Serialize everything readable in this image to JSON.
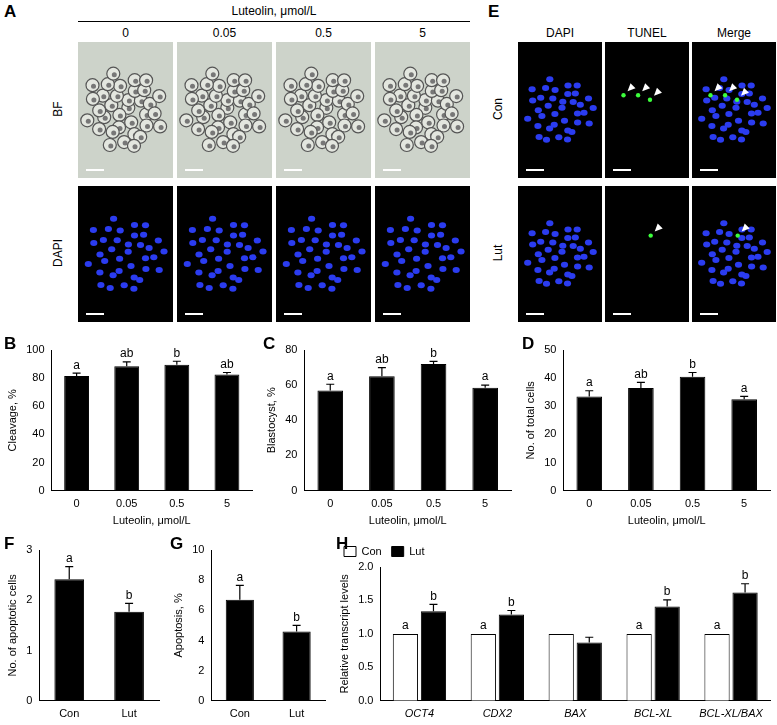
{
  "chart_data": [
    {
      "type": "bar",
      "panel": "B",
      "y_label": "Cleavage, %",
      "x_label": "Luteolin, μmol/L",
      "categories": [
        "0",
        "0.05",
        "0.5",
        "5"
      ],
      "values": [
        81.5,
        88.5,
        89.5,
        82.5
      ],
      "errors": [
        2,
        3,
        2.5,
        1.5
      ],
      "letters": [
        "a",
        "ab",
        "b",
        "ab"
      ],
      "color": "#000000",
      "ylim": [
        0,
        100
      ],
      "yticks": [
        0,
        20,
        40,
        60,
        80,
        100
      ],
      "grid": false
    },
    {
      "type": "bar",
      "panel": "C",
      "y_label": "Blastocyst, %",
      "x_label": "Luteolin, μmol/L",
      "categories": [
        "0",
        "0.05",
        "0.5",
        "5"
      ],
      "values": [
        57,
        65,
        72,
        58.5
      ],
      "errors": [
        3.5,
        5,
        1.5,
        1.5
      ],
      "letters": [
        "a",
        "ab",
        "b",
        "a"
      ],
      "color": "#000000",
      "ylim": [
        0,
        80
      ],
      "yticks": [
        0,
        20,
        40,
        60,
        80
      ],
      "grid": false
    },
    {
      "type": "bar",
      "panel": "D",
      "y_label": "No. of total cells",
      "x_label": "Luteolin, μmol/L",
      "categories": [
        "0",
        "0.05",
        "0.5",
        "5"
      ],
      "values": [
        33.5,
        36.5,
        40.5,
        32.5
      ],
      "errors": [
        2,
        2,
        1.5,
        1
      ],
      "letters": [
        "a",
        "ab",
        "b",
        "a"
      ],
      "color": "#000000",
      "ylim": [
        0,
        50
      ],
      "yticks": [
        0,
        10,
        20,
        30,
        40,
        50
      ],
      "grid": false
    },
    {
      "type": "bar",
      "panel": "F",
      "y_label": "No. of apoptotic cells",
      "categories": [
        "Con",
        "Lut"
      ],
      "values": [
        2.42,
        1.77
      ],
      "errors": [
        0.25,
        0.17
      ],
      "letters": [
        "a",
        "b"
      ],
      "color": "#000000",
      "ylim": [
        0,
        3
      ],
      "yticks": [
        0,
        1,
        2,
        3
      ],
      "grid": false
    },
    {
      "type": "bar",
      "panel": "G",
      "y_label": "Apoptosis, %",
      "categories": [
        "Con",
        "Lut"
      ],
      "values": [
        6.7,
        4.6
      ],
      "errors": [
        0.95,
        0.4
      ],
      "letters": [
        "a",
        "b"
      ],
      "color": "#000000",
      "ylim": [
        0,
        10
      ],
      "yticks": [
        0,
        2,
        4,
        6,
        8,
        10
      ],
      "grid": false
    },
    {
      "type": "bar",
      "panel": "H",
      "y_label": "Relative transcript levels",
      "categories": [
        "OCT4",
        "CDX2",
        "BAX",
        "BCL-XL",
        "BCL-XL/BAX"
      ],
      "series": [
        {
          "name": "Con",
          "color": "#ffffff",
          "values": [
            1,
            1,
            1,
            1,
            1
          ],
          "errors": [
            0,
            0,
            0,
            0,
            0
          ],
          "letters": [
            "a",
            "a",
            null,
            "a",
            "a"
          ]
        },
        {
          "name": "Lut",
          "color": "#000000",
          "values": [
            1.34,
            1.29,
            0.87,
            1.41,
            1.62
          ],
          "errors": [
            0.1,
            0.06,
            0.08,
            0.1,
            0.13
          ],
          "letters": [
            "b",
            "b",
            null,
            "b",
            "b"
          ]
        }
      ],
      "legend": "upper left",
      "ylim": [
        0,
        2
      ],
      "yticks": [
        {
          "value": 0,
          "label": "0.0"
        },
        0.5,
        {
          "value": 1,
          "label": "1.0"
        },
        1.5,
        {
          "value": 2,
          "label": "2.0"
        }
      ],
      "grid": false
    }
  ],
  "image_panels": [
    {
      "panel": "A",
      "title": "Luteolin, μmol/L",
      "columns": [
        "0",
        "0.05",
        "0.5",
        "5"
      ],
      "rows": [
        "BF",
        "DAPI"
      ]
    },
    {
      "panel": "E",
      "columns": [
        "DAPI",
        "TUNEL",
        "Merge"
      ],
      "rows": [
        "Con",
        "Lut"
      ]
    }
  ]
}
